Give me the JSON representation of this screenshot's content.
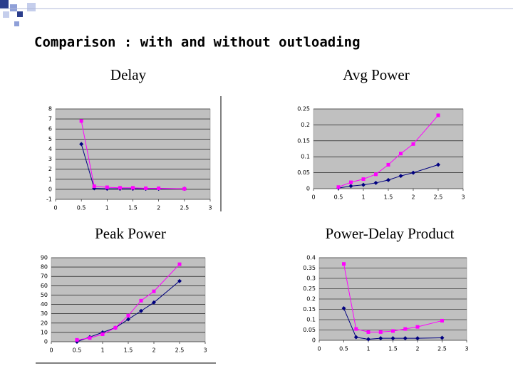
{
  "slide": {
    "title": "Comparison : with and without outloading"
  },
  "chart_data": [
    {
      "type": "line",
      "title": "Delay",
      "x": [
        0.5,
        0.75,
        1,
        1.25,
        1.5,
        1.75,
        2,
        2.5
      ],
      "xlim": [
        0,
        3
      ],
      "xticks": [
        0,
        0.5,
        1,
        1.5,
        2,
        2.5,
        3
      ],
      "ylim": [
        -1,
        8
      ],
      "yticks": [
        -1,
        0,
        1,
        2,
        3,
        4,
        5,
        6,
        7,
        8
      ],
      "grid": true,
      "series": [
        {
          "color": "#000080",
          "marker": "diamond",
          "values": [
            4.5,
            0.1,
            0.05,
            0.05,
            0.05,
            0.05,
            0.05,
            0.05
          ]
        },
        {
          "color": "#ff00ff",
          "marker": "square",
          "values": [
            6.8,
            0.3,
            0.2,
            0.15,
            0.15,
            0.1,
            0.1,
            0.05
          ]
        }
      ]
    },
    {
      "type": "line",
      "title": "Avg Power",
      "x": [
        0.5,
        0.75,
        1,
        1.25,
        1.5,
        1.75,
        2,
        2.5
      ],
      "xlim": [
        0,
        3
      ],
      "xticks": [
        0,
        0.5,
        1,
        1.5,
        2,
        2.5,
        3
      ],
      "ylim": [
        0,
        0.25
      ],
      "yticks": [
        0,
        0.05,
        0.1,
        0.15,
        0.2,
        0.25
      ],
      "grid": true,
      "series": [
        {
          "color": "#000080",
          "marker": "diamond",
          "values": [
            0.002,
            0.008,
            0.012,
            0.018,
            0.027,
            0.04,
            0.05,
            0.075
          ]
        },
        {
          "color": "#ff00ff",
          "marker": "square",
          "values": [
            0.005,
            0.02,
            0.03,
            0.045,
            0.075,
            0.11,
            0.14,
            0.23
          ]
        }
      ]
    },
    {
      "type": "line",
      "title": "Peak Power",
      "x": [
        0.5,
        0.75,
        1,
        1.25,
        1.5,
        1.75,
        2,
        2.5
      ],
      "xlim": [
        0,
        3
      ],
      "xticks": [
        0,
        0.5,
        1,
        1.5,
        2,
        2.5,
        3
      ],
      "ylim": [
        0,
        90
      ],
      "yticks": [
        0,
        10,
        20,
        30,
        40,
        50,
        60,
        70,
        80,
        90
      ],
      "grid": true,
      "series": [
        {
          "color": "#000080",
          "marker": "diamond",
          "values": [
            0,
            5,
            10,
            15,
            24,
            33,
            42,
            65
          ]
        },
        {
          "color": "#ff00ff",
          "marker": "square",
          "values": [
            2,
            4,
            8,
            15,
            28,
            44,
            54,
            83
          ]
        }
      ]
    },
    {
      "type": "line",
      "title": "Power-Delay Product",
      "x": [
        0.5,
        0.75,
        1,
        1.25,
        1.5,
        1.75,
        2,
        2.5
      ],
      "xlim": [
        0,
        3
      ],
      "xticks": [
        0,
        0.5,
        1,
        1.5,
        2,
        2.5,
        3
      ],
      "ylim": [
        0,
        0.4
      ],
      "yticks": [
        0,
        0.05,
        0.1,
        0.15,
        0.2,
        0.25,
        0.3,
        0.35,
        0.4
      ],
      "grid": true,
      "series": [
        {
          "color": "#000080",
          "marker": "diamond",
          "values": [
            0.155,
            0.015,
            0.005,
            0.01,
            0.01,
            0.01,
            0.01,
            0.012
          ]
        },
        {
          "color": "#ff00ff",
          "marker": "square",
          "values": [
            0.37,
            0.055,
            0.04,
            0.04,
            0.045,
            0.055,
            0.065,
            0.095
          ]
        }
      ]
    }
  ]
}
